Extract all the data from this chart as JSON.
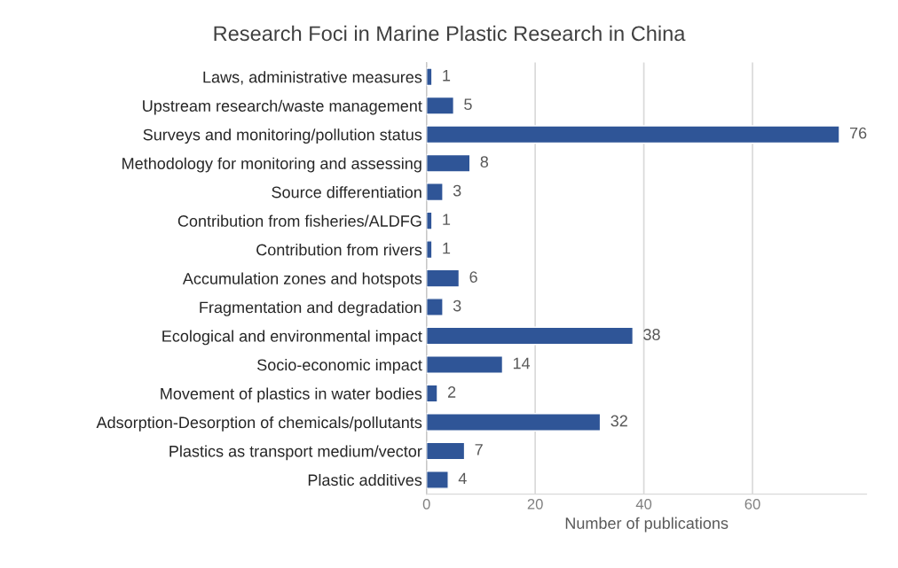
{
  "chart_data": {
    "type": "bar",
    "orientation": "horizontal",
    "title": "Research Foci in Marine Plastic Research in China",
    "xlabel": "Number of publications",
    "categories": [
      "Laws, administrative measures",
      "Upstream research/waste management",
      "Surveys and monitoring/pollution status",
      "Methodology for monitoring and assessing",
      "Source differentiation",
      "Contribution from fisheries/ALDFG",
      "Contribution from rivers",
      "Accumulation zones and hotspots",
      "Fragmentation and degradation",
      "Ecological and environmental impact",
      "Socio-economic impact",
      "Movement of plastics in water bodies",
      "Adsorption-Desorption of chemicals/pollutants",
      "Plastics as transport medium/vector",
      "Plastic additives"
    ],
    "values": [
      1,
      5,
      76,
      8,
      3,
      1,
      1,
      6,
      3,
      38,
      14,
      2,
      32,
      7,
      4
    ],
    "color": "#2f5597",
    "data_labels": true,
    "xlim": [
      0,
      81
    ],
    "xticks": [
      0,
      20,
      40,
      60
    ],
    "grid": "x",
    "legend": false
  }
}
